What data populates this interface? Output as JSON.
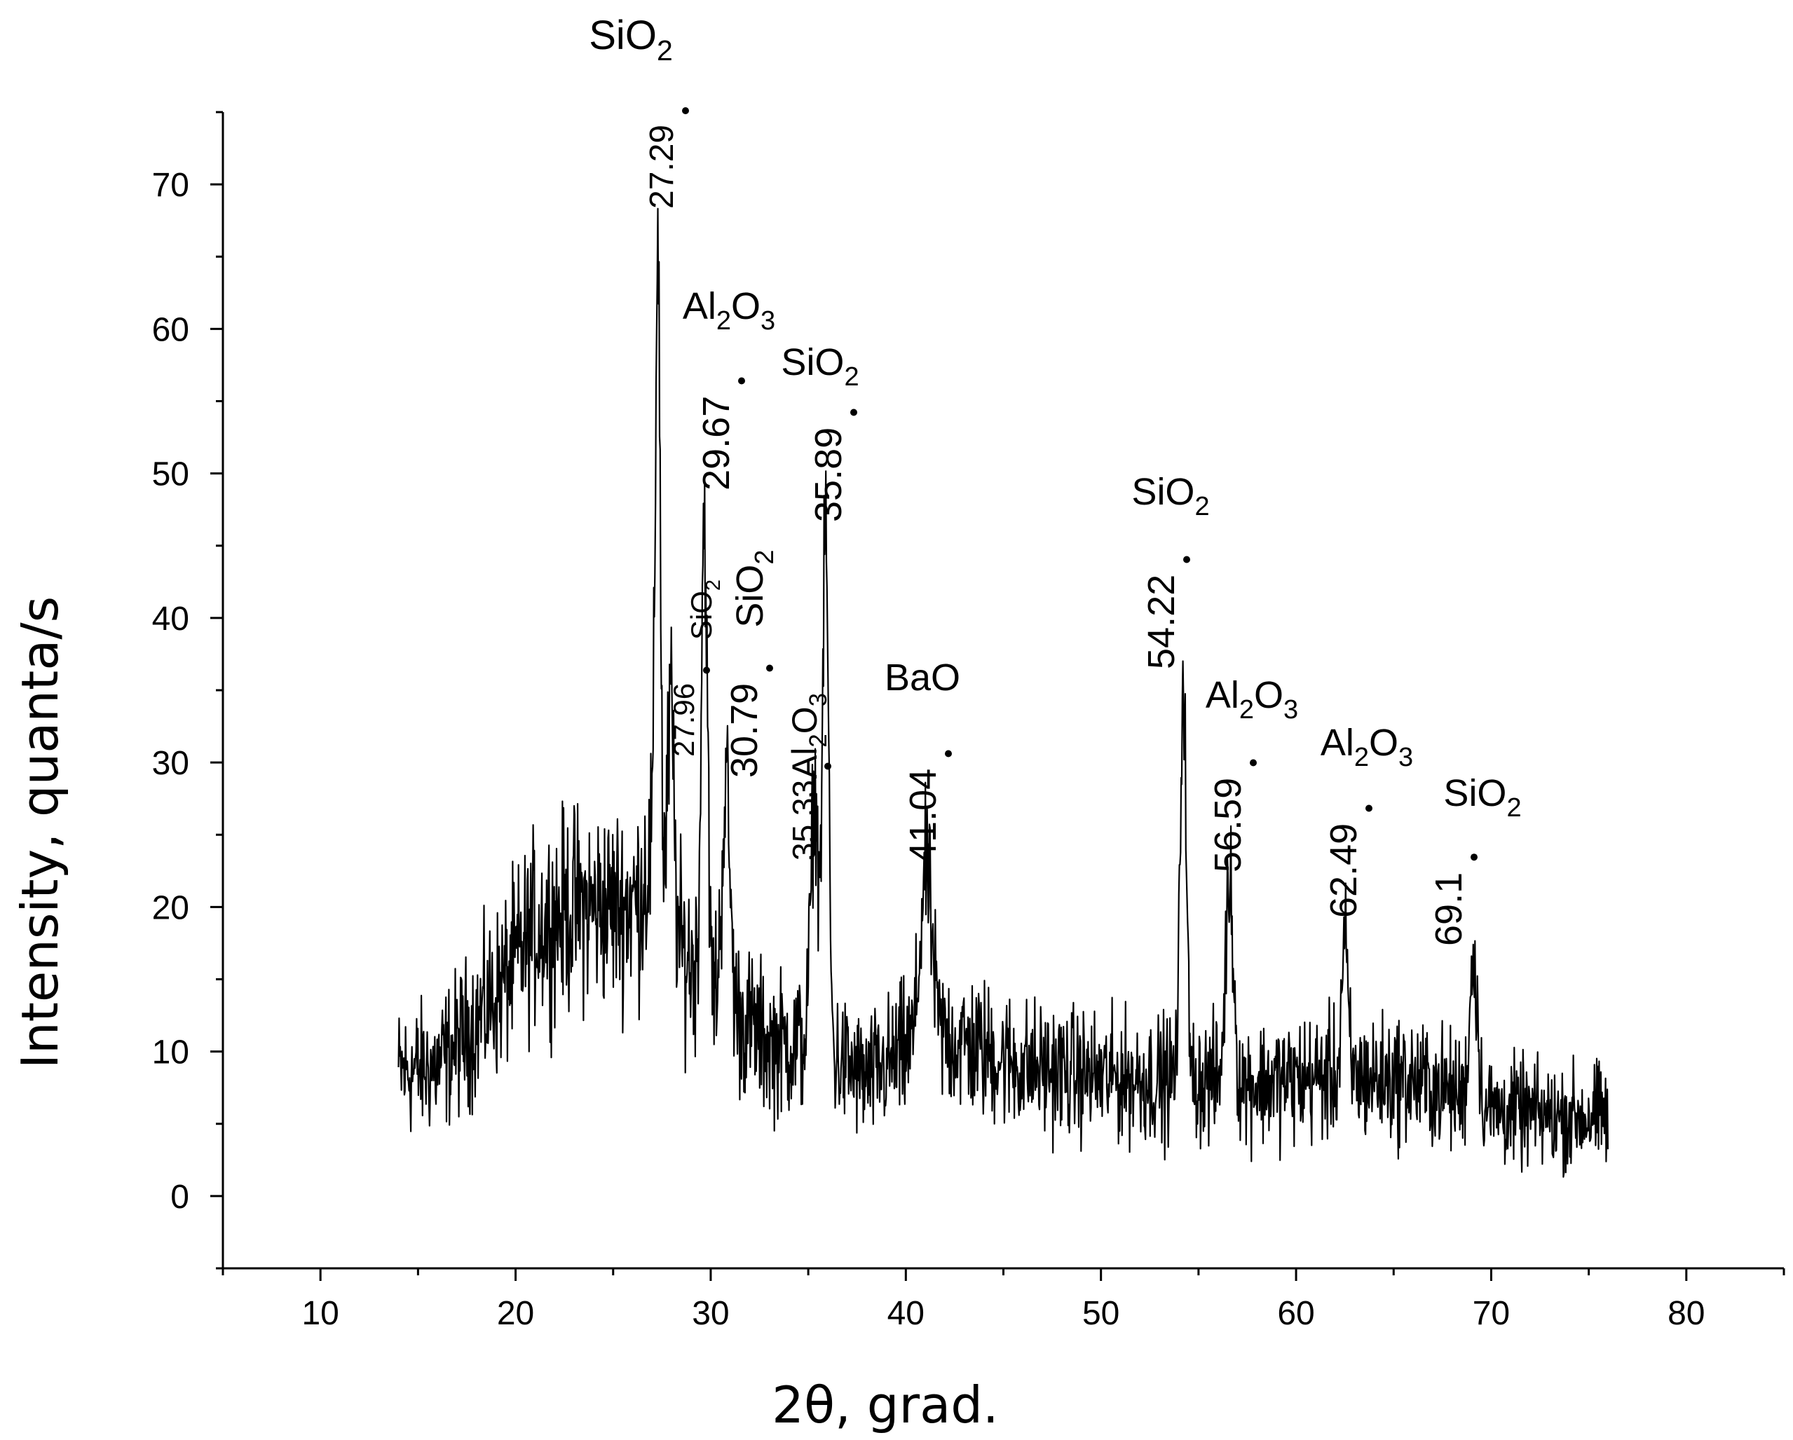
{
  "chart_data": {
    "type": "line",
    "title": "",
    "xlabel": "2θ, grad.",
    "ylabel": "Intensity, quanta/s",
    "xlim": [
      5,
      85
    ],
    "ylim": [
      -5,
      75
    ],
    "x_ticks": [
      10,
      20,
      30,
      40,
      50,
      60,
      70,
      80
    ],
    "y_ticks": [
      0,
      10,
      20,
      30,
      40,
      50,
      60,
      70
    ],
    "grid": false,
    "legend": "none",
    "line_color": "#000000",
    "x_range": [
      14,
      76
    ],
    "background_profile": [
      [
        14,
        8.5
      ],
      [
        16,
        9
      ],
      [
        18,
        12
      ],
      [
        19.5,
        15
      ],
      [
        21,
        18.5
      ],
      [
        23,
        20
      ],
      [
        25,
        20
      ],
      [
        26.3,
        20.5
      ],
      [
        27,
        24
      ],
      [
        28.5,
        17
      ],
      [
        31,
        13
      ],
      [
        33,
        10.5
      ],
      [
        35,
        10.5
      ],
      [
        37,
        9
      ],
      [
        38,
        8
      ],
      [
        40,
        10
      ],
      [
        42,
        11
      ],
      [
        44,
        10
      ],
      [
        46,
        9
      ],
      [
        50,
        8.2
      ],
      [
        55,
        8
      ],
      [
        58,
        7.8
      ],
      [
        62,
        8.3
      ],
      [
        66,
        8
      ],
      [
        68,
        7.2
      ],
      [
        70,
        6
      ],
      [
        73,
        5.5
      ],
      [
        76,
        5.5
      ]
    ],
    "peaks": [
      {
        "x": 27.29,
        "y": 67.5,
        "width": 0.12,
        "label": "27.29",
        "phase": "SiO",
        "subscript": "2"
      },
      {
        "x": 27.96,
        "y": 34.0,
        "width": 0.15,
        "label": "27.96",
        "phase": "SiO",
        "subscript": "2"
      },
      {
        "x": 29.67,
        "y": 47.5,
        "width": 0.15,
        "label": "29.67",
        "phase": "Al",
        "subscript": "2",
        "phase2": "O",
        "subscript2": "3"
      },
      {
        "x": 30.79,
        "y": 28.5,
        "width": 0.2,
        "label": "30.79",
        "phase": "SiO",
        "subscript": "2"
      },
      {
        "x": 35.33,
        "y": 27.5,
        "width": 0.2,
        "label": "35.33",
        "phase": "Al",
        "subscript": "2",
        "phase2": "O",
        "subscript2": "3"
      },
      {
        "x": 35.89,
        "y": 46.0,
        "width": 0.15,
        "label": "35.89",
        "phase": "SiO",
        "subscript": "2"
      },
      {
        "x": 41.04,
        "y": 22.5,
        "width": 0.3,
        "label": "41.04",
        "phase": "BaO"
      },
      {
        "x": 54.22,
        "y": 36.0,
        "width": 0.15,
        "label": "54.22",
        "phase": "SiO",
        "subscript": "2"
      },
      {
        "x": 56.59,
        "y": 22.0,
        "width": 0.2,
        "label": "56.59",
        "phase": "Al",
        "subscript": "2",
        "phase2": "O",
        "subscript2": "3"
      },
      {
        "x": 62.49,
        "y": 18.0,
        "width": 0.15,
        "label": "62.49",
        "phase": "Al",
        "subscript": "2",
        "phase2": "O",
        "subscript2": "3"
      },
      {
        "x": 69.1,
        "y": 16.5,
        "width": 0.2,
        "label": "69.1",
        "phase": "SiO",
        "subscript": "2"
      }
    ],
    "noise_amplitude": 2.3
  }
}
